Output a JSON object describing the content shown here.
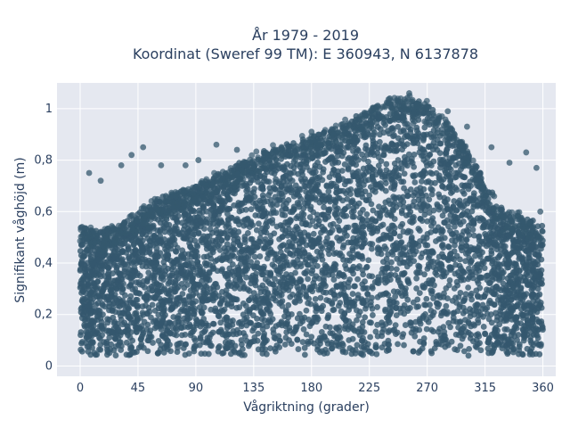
{
  "chart_data": {
    "type": "scatter",
    "title_line1": "År 1979 - 2019",
    "title_line2": "Koordinat (Sweref 99 TM): E 360943, N 6137878",
    "xlabel": "Vågriktning (grader)",
    "ylabel": "Signifikant våghöjd (m)",
    "xlim": [
      -18,
      370
    ],
    "ylim": [
      -0.04,
      1.1
    ],
    "xticks": [
      0,
      45,
      90,
      135,
      180,
      225,
      270,
      315,
      360
    ],
    "xtick_labels": [
      "0",
      "45",
      "90",
      "135",
      "180",
      "225",
      "270",
      "315",
      "360"
    ],
    "yticks": [
      0,
      0.2,
      0.4,
      0.6,
      0.8,
      1
    ],
    "ytick_labels": [
      "0",
      "0,2",
      "0,4",
      "0,6",
      "0,8",
      "1"
    ],
    "grid": true,
    "marker_color": "#34586e",
    "plot_bg": "#e5e8f0",
    "envelope": {
      "direction": [
        0,
        15,
        30,
        45,
        60,
        75,
        90,
        105,
        120,
        135,
        150,
        165,
        180,
        195,
        210,
        225,
        240,
        255,
        270,
        285,
        300,
        315,
        330,
        345,
        360
      ],
      "min_height": [
        0.04,
        0.04,
        0.04,
        0.04,
        0.04,
        0.04,
        0.04,
        0.04,
        0.04,
        0.04,
        0.04,
        0.04,
        0.04,
        0.04,
        0.04,
        0.04,
        0.05,
        0.05,
        0.05,
        0.04,
        0.04,
        0.04,
        0.04,
        0.04,
        0.04
      ],
      "max_height": [
        0.55,
        0.52,
        0.55,
        0.6,
        0.65,
        0.68,
        0.7,
        0.74,
        0.78,
        0.82,
        0.85,
        0.87,
        0.89,
        0.92,
        0.96,
        1.0,
        1.04,
        1.04,
        1.02,
        0.95,
        0.85,
        0.72,
        0.6,
        0.58,
        0.55
      ]
    },
    "outliers": [
      {
        "x": 7,
        "y": 0.75
      },
      {
        "x": 16,
        "y": 0.72
      },
      {
        "x": 32,
        "y": 0.78
      },
      {
        "x": 40,
        "y": 0.82
      },
      {
        "x": 49,
        "y": 0.85
      },
      {
        "x": 63,
        "y": 0.78
      },
      {
        "x": 82,
        "y": 0.78
      },
      {
        "x": 92,
        "y": 0.8
      },
      {
        "x": 106,
        "y": 0.86
      },
      {
        "x": 122,
        "y": 0.84
      },
      {
        "x": 180,
        "y": 0.91
      },
      {
        "x": 256,
        "y": 1.06
      },
      {
        "x": 286,
        "y": 0.99
      },
      {
        "x": 301,
        "y": 0.93
      },
      {
        "x": 320,
        "y": 0.85
      },
      {
        "x": 334,
        "y": 0.79
      },
      {
        "x": 347,
        "y": 0.83
      },
      {
        "x": 355,
        "y": 0.77
      },
      {
        "x": 358,
        "y": 0.6
      }
    ]
  }
}
